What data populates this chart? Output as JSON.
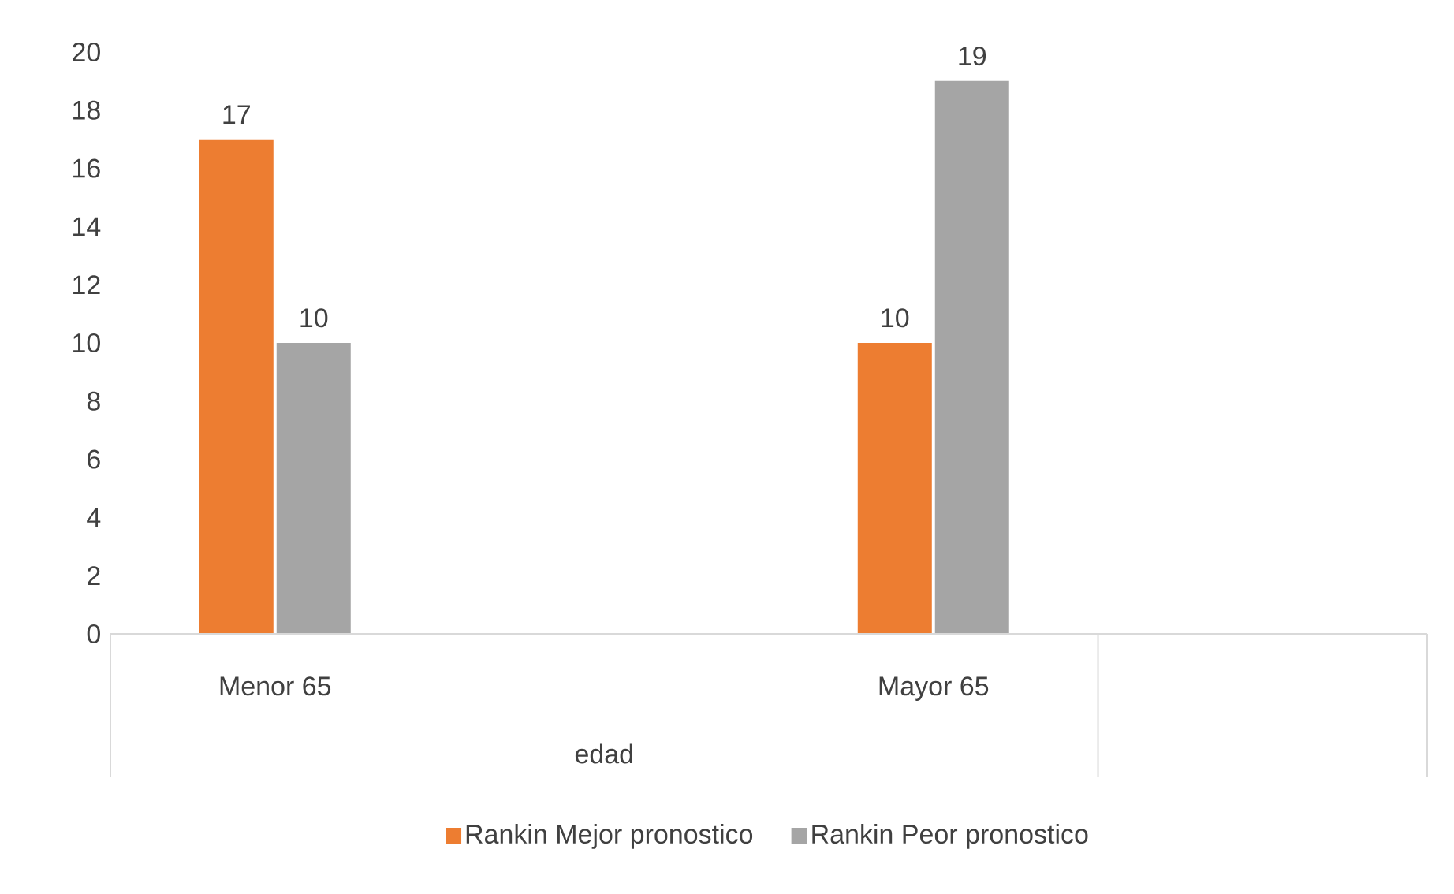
{
  "chart_data": {
    "type": "bar",
    "xlabel": "edad",
    "categories": [
      "Menor 65",
      null,
      "Mayor 65",
      null
    ],
    "series": [
      {
        "name": "Rankin Mejor pronostico",
        "color": "#ed7d31",
        "values": [
          17,
          null,
          10,
          null
        ]
      },
      {
        "name": "Rankin Peor pronostico",
        "color": "#a5a5a5",
        "values": [
          10,
          null,
          19,
          null
        ]
      }
    ],
    "ylim": [
      0,
      20
    ],
    "yticks": [
      0,
      2,
      4,
      6,
      8,
      10,
      12,
      14,
      16,
      18,
      20
    ],
    "data_labels": true,
    "legend": "bottom"
  }
}
